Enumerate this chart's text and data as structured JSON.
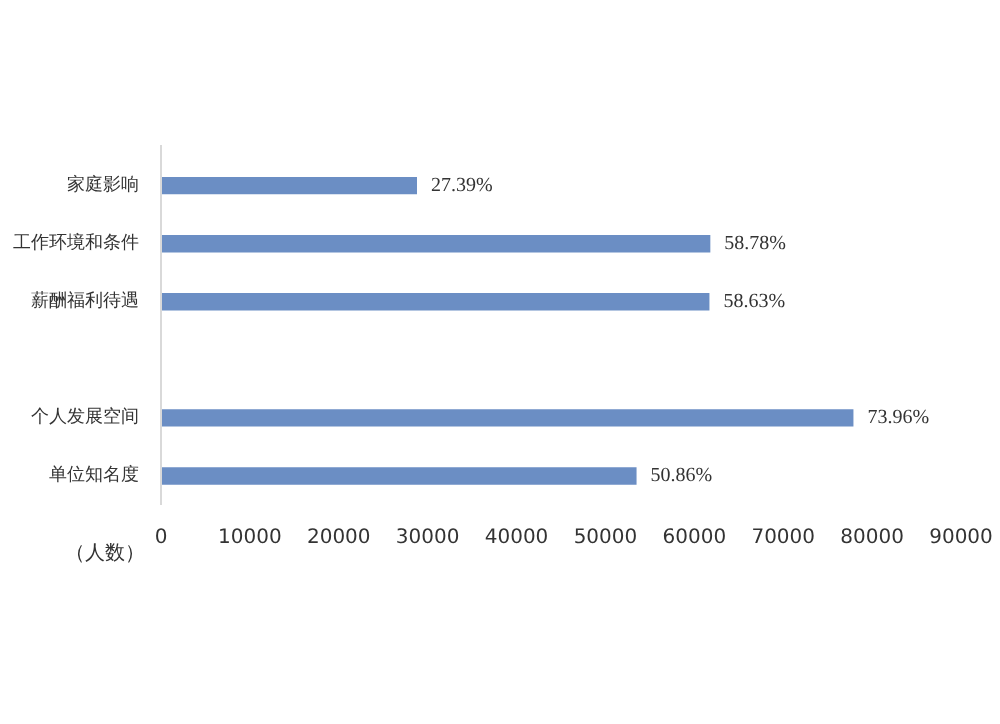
{
  "chart_data": {
    "type": "bar",
    "orientation": "horizontal",
    "xlabel": "（人数）",
    "categories": [
      "家庭影响",
      "工作环境和条件",
      "薪酬福利待遇",
      null,
      "个人发展空间",
      "单位知名度"
    ],
    "values": [
      28800,
      61800,
      61700,
      null,
      77900,
      53500
    ],
    "annotations": [
      {
        "text": "27.39%",
        "x": 28800,
        "y": "家庭影响"
      },
      {
        "text": "58.78%",
        "x": 61800,
        "y": "工作环境和条件"
      },
      {
        "text": "58.63%",
        "x": 61700,
        "y": "薪酬福利待遇"
      },
      {
        "text": "73.96%",
        "x": 77900,
        "y": "个人发展空间"
      },
      {
        "text": "50.86%",
        "x": 53500,
        "y": "单位知名度"
      }
    ],
    "color": "#6b8ec4",
    "xlim": [
      0,
      90000
    ],
    "xticks": [
      0,
      10000,
      20000,
      30000,
      40000,
      50000,
      60000,
      70000,
      80000,
      90000
    ],
    "grid": false
  }
}
